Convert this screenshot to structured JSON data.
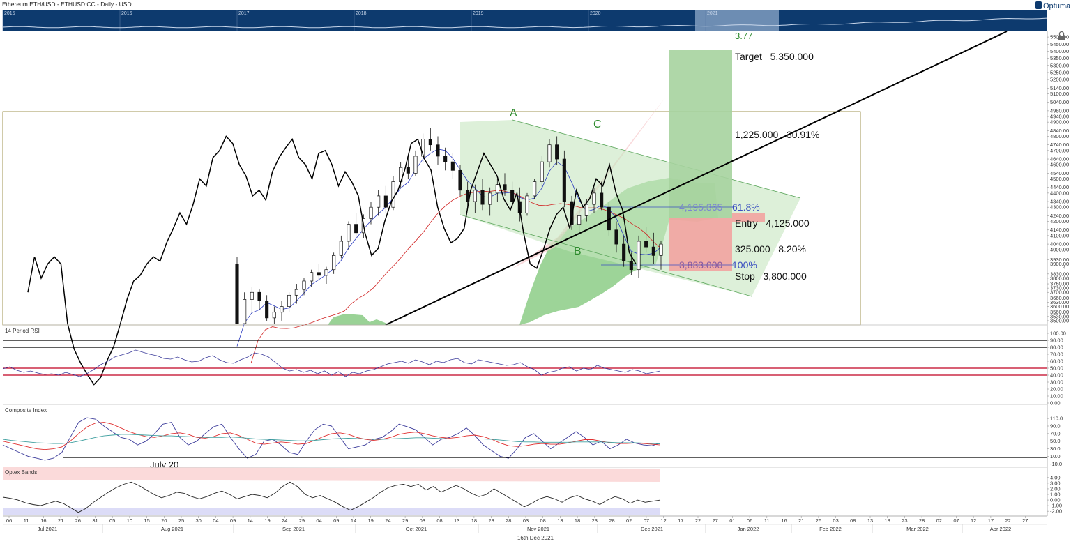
{
  "header": {
    "title": "Ethereum ETH/USD - ETHUSD:CC - Daily - USD",
    "brand": "Optuma",
    "brand_icon": "optuma-logo-icon"
  },
  "footer": {
    "date": "16th Dec 2021"
  },
  "colors": {
    "overview_bg": "#0d3a6e",
    "overview_selection": "#7f9cc0",
    "target_green": "#a6d39e",
    "stop_red": "#f2a3a0",
    "channel_green": "#cfe8c9",
    "wedge_pink": "#f7c9cc",
    "cloud_green": "#6fbf6a",
    "rsi_line": "#3a3a9a",
    "rsi_level": "#c00020",
    "ci_red": "#e03030",
    "ci_teal": "#40a0a0",
    "band_pink": "#fbdada",
    "band_blue": "#dcdcf7",
    "fib_blue": "#3a4fc0",
    "label_green": "#2e8b2e"
  },
  "overview": {
    "years": [
      "2015",
      "2016",
      "2017",
      "2018",
      "2019",
      "2020",
      "2021"
    ]
  },
  "x_axis": {
    "day_ticks": [
      "06",
      "11",
      "16",
      "21",
      "26",
      "31",
      "05",
      "10",
      "15",
      "20",
      "25",
      "30",
      "04",
      "09",
      "14",
      "19",
      "24",
      "29",
      "04",
      "09",
      "14",
      "19",
      "24",
      "29",
      "03",
      "08",
      "13",
      "18",
      "23",
      "28",
      "03",
      "08",
      "13",
      "18",
      "23",
      "28",
      "02",
      "07",
      "12",
      "17",
      "22",
      "27",
      "01",
      "06",
      "11",
      "16",
      "21",
      "26",
      "03",
      "08",
      "13",
      "18",
      "23",
      "28",
      "02",
      "07",
      "12",
      "17",
      "22",
      "27"
    ],
    "months": [
      "Jul 2021",
      "Aug 2021",
      "Sep 2021",
      "Oct 2021",
      "Nov 2021",
      "Dec 2021",
      "Jan 2022",
      "Feb 2022",
      "Mar 2022",
      "Apr 2022"
    ]
  },
  "panels": {
    "rsi_title": "14 Period RSI",
    "ci_title": "Composite Index",
    "optex_title": "Optex Bands",
    "ci_annotation": "July 20"
  },
  "annotations": {
    "ratio": "3.77",
    "target": "Target   5,350.000",
    "gain": "1,225.000   30.91%",
    "entry": "Entry   4,125.000",
    "risk": "325.000   8.20%",
    "stop": "Stop   3,800.000",
    "fib_618_price": "4,195.365",
    "fib_618_pct": "61.8%",
    "fib_100_price": "3,833.000",
    "fib_100_pct": "100%",
    "wave_a": "A",
    "wave_b": "B",
    "wave_c": "C"
  },
  "chart_data": [
    {
      "type": "candlestick",
      "title": "Ethereum ETH/USD - ETHUSD:CC - Daily - USD",
      "y_ticks": [
        "5500.00",
        "5450.00",
        "5400.00",
        "5350.00",
        "5300.00",
        "5250.00",
        "5200.00",
        "5140.00",
        "5100.00",
        "5040.00",
        "4980.00",
        "4940.00",
        "4900.00",
        "4840.00",
        "4800.00",
        "4740.00",
        "4700.00",
        "4640.00",
        "4600.00",
        "4540.00",
        "4500.00",
        "4440.00",
        "4400.00",
        "4340.00",
        "4300.00",
        "4240.00",
        "4200.00",
        "4140.00",
        "4100.00",
        "4040.00",
        "4000.00",
        "3930.00",
        "3900.00",
        "3830.00",
        "3800.00",
        "3760.00",
        "3730.00",
        "3700.00",
        "3660.00",
        "3630.00",
        "3600.00",
        "3560.00",
        "3530.00",
        "3500.00"
      ],
      "ylim": [
        3480,
        5530
      ],
      "close_line": [
        3700,
        3950,
        3800,
        3900,
        3950,
        3900,
        3480,
        3300,
        3200,
        3120,
        3050,
        3100,
        3220,
        3320,
        3480,
        3650,
        3780,
        3820,
        3900,
        3950,
        3920,
        4050,
        4150,
        4260,
        4180,
        4320,
        4500,
        4450,
        4650,
        4700,
        4800,
        4750,
        4600,
        4520,
        4380,
        4420,
        4350,
        4550,
        4650,
        4720,
        4780,
        4650,
        4600,
        4500,
        4680,
        4700,
        4600,
        4450,
        4550,
        4480,
        4380,
        4120,
        3960,
        4010,
        4200,
        4340,
        4420,
        4560,
        4750,
        4780,
        4640,
        4560,
        4300,
        4150,
        4050,
        4080,
        4150,
        4420,
        4550,
        4680,
        4600,
        4520,
        4360,
        4280,
        4400,
        4120,
        3900,
        3870,
        4000,
        4150,
        4250,
        4300,
        4150,
        4420,
        4300,
        4360,
        4500,
        4450,
        4600,
        4400,
        4280,
        3980,
        3900
      ],
      "candles": [
        [
          3900,
          3950,
          3300,
          3320
        ],
        [
          3320,
          3700,
          3280,
          3650
        ],
        [
          3650,
          3740,
          3550,
          3700
        ],
        [
          3700,
          3720,
          3580,
          3640
        ],
        [
          3640,
          3680,
          3500,
          3520
        ],
        [
          3520,
          3600,
          3450,
          3560
        ],
        [
          3560,
          3640,
          3500,
          3600
        ],
        [
          3600,
          3700,
          3560,
          3680
        ],
        [
          3680,
          3760,
          3620,
          3720
        ],
        [
          3720,
          3800,
          3680,
          3780
        ],
        [
          3780,
          3860,
          3740,
          3840
        ],
        [
          3840,
          3900,
          3780,
          3820
        ],
        [
          3820,
          3880,
          3760,
          3860
        ],
        [
          3860,
          3980,
          3830,
          3960
        ],
        [
          3960,
          4100,
          3940,
          4060
        ],
        [
          4060,
          4200,
          4000,
          4180
        ],
        [
          4180,
          4260,
          4080,
          4120
        ],
        [
          4120,
          4250,
          4080,
          4220
        ],
        [
          4220,
          4340,
          4180,
          4300
        ],
        [
          4300,
          4420,
          4240,
          4380
        ],
        [
          4380,
          4450,
          4260,
          4300
        ],
        [
          4300,
          4520,
          4280,
          4480
        ],
        [
          4480,
          4620,
          4440,
          4580
        ],
        [
          4580,
          4660,
          4500,
          4540
        ],
        [
          4540,
          4700,
          4520,
          4660
        ],
        [
          4660,
          4820,
          4620,
          4780
        ],
        [
          4780,
          4860,
          4700,
          4740
        ],
        [
          4740,
          4800,
          4600,
          4660
        ],
        [
          4660,
          4720,
          4560,
          4620
        ],
        [
          4620,
          4680,
          4500,
          4560
        ],
        [
          4560,
          4600,
          4380,
          4420
        ],
        [
          4420,
          4480,
          4300,
          4340
        ],
        [
          4340,
          4460,
          4260,
          4420
        ],
        [
          4420,
          4500,
          4280,
          4320
        ],
        [
          4320,
          4440,
          4240,
          4400
        ],
        [
          4400,
          4500,
          4340,
          4460
        ],
        [
          4460,
          4540,
          4380,
          4420
        ],
        [
          4420,
          4480,
          4300,
          4340
        ],
        [
          4340,
          4440,
          4200,
          4260
        ],
        [
          4260,
          4400,
          4240,
          4380
        ],
        [
          4380,
          4500,
          4360,
          4480
        ],
        [
          4480,
          4660,
          4440,
          4620
        ],
        [
          4620,
          4780,
          4580,
          4740
        ],
        [
          4740,
          4800,
          4600,
          4640
        ],
        [
          4640,
          4700,
          4300,
          4340
        ],
        [
          4340,
          4380,
          4140,
          4180
        ],
        [
          4180,
          4280,
          4120,
          4240
        ],
        [
          4240,
          4360,
          4200,
          4320
        ],
        [
          4320,
          4440,
          4260,
          4400
        ],
        [
          4400,
          4480,
          4280,
          4300
        ],
        [
          4300,
          4340,
          4100,
          4140
        ],
        [
          4140,
          4200,
          3980,
          4040
        ],
        [
          4040,
          4100,
          3880,
          3920
        ],
        [
          3920,
          3980,
          3820,
          3860
        ],
        [
          3860,
          4100,
          3800,
          4060
        ],
        [
          4060,
          4160,
          3980,
          4020
        ],
        [
          4020,
          4120,
          3900,
          3960
        ],
        [
          3960,
          4060,
          3860,
          4040
        ]
      ]
    },
    {
      "type": "line",
      "title": "14 Period RSI",
      "y_ticks": [
        "100.00",
        "90.00",
        "80.00",
        "70.00",
        "60.00",
        "50.00",
        "40.00",
        "30.00",
        "20.00",
        "10.00",
        "0.00"
      ],
      "ylim": [
        0,
        100
      ],
      "levels": [
        90,
        80,
        50,
        40
      ],
      "values": [
        49,
        52,
        47,
        44,
        46,
        43,
        41,
        42,
        40,
        44,
        41,
        38,
        42,
        48,
        55,
        60,
        66,
        69,
        72,
        76,
        73,
        70,
        68,
        64,
        63,
        66,
        62,
        59,
        60,
        65,
        68,
        62,
        58,
        57,
        62,
        66,
        72,
        70,
        66,
        58,
        50,
        46,
        48,
        44,
        47,
        42,
        46,
        40,
        45,
        38,
        44,
        42,
        46,
        48,
        52,
        56,
        58,
        60,
        57,
        62,
        59,
        55,
        60,
        58,
        62,
        64,
        58,
        56,
        62,
        60,
        58,
        56,
        54,
        55,
        58,
        52,
        48,
        40,
        44,
        46,
        50,
        52,
        46,
        50,
        48,
        54,
        50,
        48,
        46,
        44,
        48,
        46,
        42,
        44,
        46
      ]
    },
    {
      "type": "line",
      "title": "Composite Index",
      "y_ticks": [
        "110.0",
        "90.0",
        "70.0",
        "50.0",
        "30.0",
        "10.0",
        "-10.0"
      ],
      "ylim": [
        -15,
        125
      ],
      "levels": [
        10
      ],
      "series": [
        {
          "values": [
            40,
            30,
            20,
            10,
            5,
            0,
            5,
            20,
            60,
            100,
            112,
            108,
            90,
            75,
            60,
            55,
            40,
            50,
            70,
            95,
            100,
            60,
            40,
            50,
            70,
            88,
            95,
            60,
            30,
            5,
            15,
            50,
            55,
            40,
            20,
            15,
            50,
            80,
            95,
            90,
            60,
            30,
            35,
            40,
            55,
            60,
            75,
            95,
            88,
            80,
            60,
            40,
            55,
            60,
            70,
            85,
            65,
            40,
            25,
            10,
            5,
            30,
            60,
            70,
            50,
            30,
            45,
            60,
            75,
            60,
            40,
            50,
            30,
            40,
            55,
            45,
            40,
            38,
            45
          ]
        },
        {
          "values": [
            50,
            45,
            40,
            35,
            30,
            28,
            30,
            35,
            50,
            70,
            88,
            98,
            100,
            95,
            85,
            75,
            68,
            62,
            60,
            64,
            70,
            72,
            68,
            60,
            58,
            62,
            70,
            72,
            65,
            55,
            45,
            42,
            45,
            48,
            46,
            42,
            44,
            52,
            62,
            70,
            72,
            68,
            60,
            55,
            52,
            55,
            60,
            68,
            72,
            74,
            70,
            64,
            60,
            58,
            60,
            64,
            66,
            62,
            55,
            45,
            38,
            36,
            38,
            42,
            44,
            42,
            42,
            45,
            50,
            54,
            54,
            50,
            46,
            44,
            44,
            45,
            44,
            42,
            40
          ]
        },
        {
          "values": [
            55,
            52,
            50,
            48,
            46,
            45,
            44,
            44,
            46,
            50,
            55,
            60,
            64,
            66,
            68,
            68,
            67,
            66,
            65,
            64,
            64,
            63,
            62,
            61,
            60,
            60,
            60,
            61,
            60,
            58,
            56,
            55,
            54,
            53,
            52,
            51,
            51,
            52,
            54,
            56,
            57,
            58,
            57,
            56,
            55,
            55,
            56,
            57,
            58,
            59,
            59,
            58,
            57,
            56,
            56,
            56,
            56,
            56,
            55,
            53,
            51,
            49,
            48,
            48,
            47,
            47,
            47,
            47,
            48,
            48,
            48,
            48,
            47,
            46,
            46,
            46,
            45,
            44,
            43
          ]
        }
      ]
    },
    {
      "type": "area",
      "title": "Optex Bands",
      "y_ticks": [
        "4.00",
        "3.00",
        "2.00",
        "1.00",
        "0.00",
        "-1.00",
        "-2.00"
      ],
      "ylim": [
        -2.6,
        4.6
      ],
      "values": [
        0.5,
        0.3,
        0.0,
        -0.5,
        -0.8,
        -1.0,
        -0.6,
        -0.2,
        -0.6,
        -1.4,
        -2.2,
        -1.5,
        -0.4,
        0.5,
        1.4,
        2.2,
        2.8,
        3.2,
        2.6,
        1.8,
        1.0,
        0.4,
        0.8,
        1.4,
        1.2,
        0.6,
        0.2,
        0.6,
        1.2,
        1.6,
        1.0,
        0.2,
        0.6,
        1.0,
        0.8,
        0.4,
        1.2,
        2.4,
        3.2,
        2.4,
        1.0,
        0.4,
        0.8,
        0.2,
        -0.4,
        -1.2,
        -1.8,
        -1.2,
        -0.4,
        0.4,
        1.4,
        2.2,
        2.6,
        2.8,
        2.4,
        2.8,
        1.8,
        2.4,
        1.4,
        2.0,
        2.6,
        2.0,
        1.2,
        0.6,
        1.0,
        2.0,
        1.2,
        0.4,
        -0.4,
        -1.2,
        -0.6,
        0.2,
        0.6,
        0.2,
        -0.4,
        0.4,
        0.8,
        0.2,
        -0.2,
        -0.8,
        0.0,
        0.6,
        0.2,
        -0.6,
        0.0,
        -0.4,
        -0.2,
        0.0
      ]
    }
  ]
}
